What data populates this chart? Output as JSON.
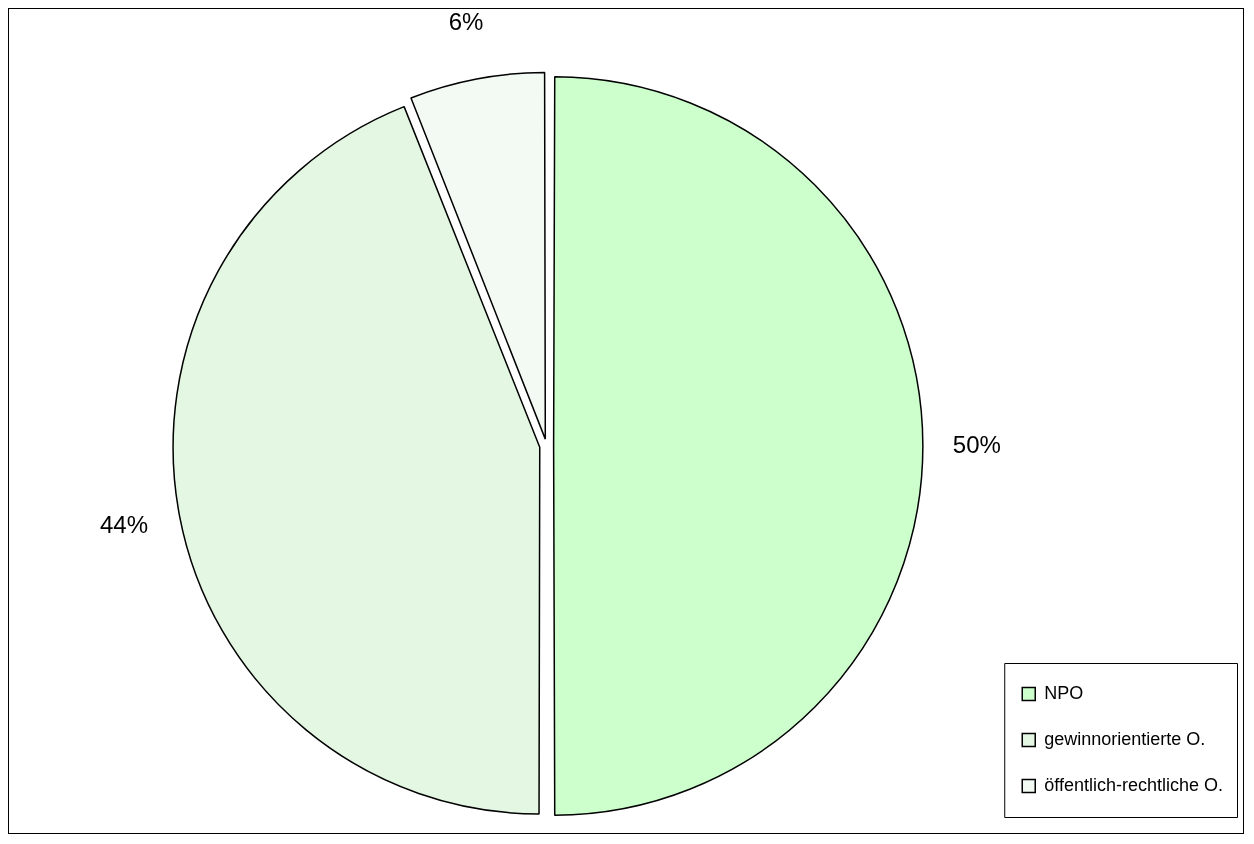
{
  "chart_data": {
    "type": "pie",
    "categories": [
      "NPO",
      "gewinnorientierte O.",
      "öffentlich-rechtliche O."
    ],
    "values": [
      50,
      44,
      6
    ],
    "colors": [
      "#ccffcc",
      "#e3f7e3",
      "#f3faf3"
    ],
    "value_labels": [
      "50%",
      "44%",
      "6%"
    ],
    "legend": "bottom right"
  }
}
